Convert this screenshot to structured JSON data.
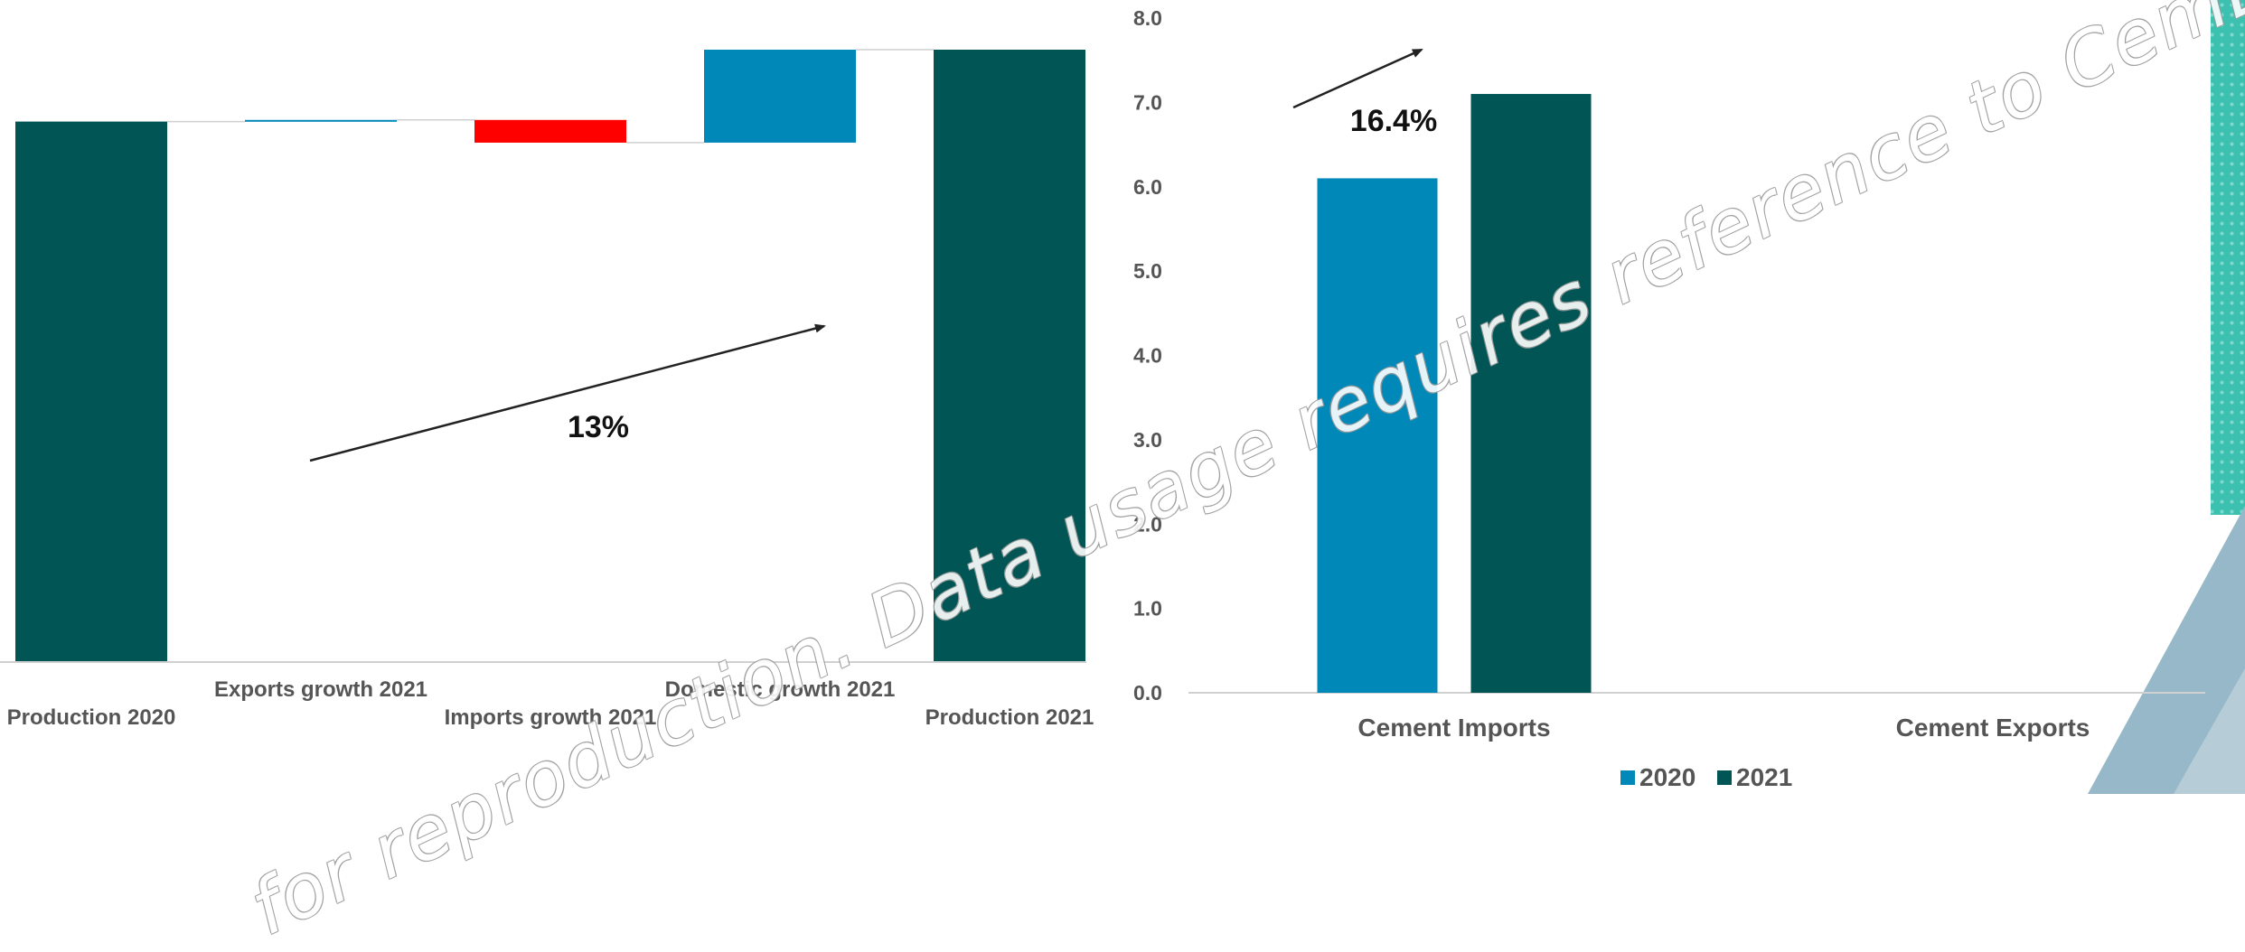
{
  "watermark": "for reproduction. Data usage requires reference to CemBR as",
  "colors": {
    "series_2020": "#0088b8",
    "series_2021": "#015655",
    "decrease": "#ff0000",
    "increase": "#0088b8",
    "total": "#015655",
    "axis": "#d0d0d0",
    "text": "#555555",
    "decor_teal": "#3cc1b0",
    "decor_steel": "#97b8c8"
  },
  "chart_data": [
    {
      "type": "bar",
      "subtype": "waterfall",
      "title": "",
      "categories": [
        "Production 2020",
        "Exports growth 2021",
        "Imports growth 2021",
        "Domestic growth 2021",
        "Production 2021"
      ],
      "values": [
        100,
        0.3,
        -4.2,
        17.2,
        113.3
      ],
      "kinds": [
        "total",
        "increase",
        "decrease",
        "increase",
        "total"
      ],
      "ylim": [
        0,
        113.3
      ],
      "annotation": "13%",
      "axis_labels_visible": false,
      "grid": false
    },
    {
      "type": "bar",
      "title": "",
      "categories": [
        "Cement Imports",
        "Cement Exports"
      ],
      "series": [
        {
          "name": "2020",
          "values": [
            6.1,
            0
          ]
        },
        {
          "name": "2021",
          "values": [
            7.1,
            0
          ]
        }
      ],
      "ylim": [
        0,
        8
      ],
      "yticks": [
        "0.0",
        "1.0",
        "2.0",
        "3.0",
        "4.0",
        "5.0",
        "6.0",
        "7.0",
        "8.0"
      ],
      "annotation": "16.4%",
      "legend": "bottom",
      "grid": false
    }
  ]
}
